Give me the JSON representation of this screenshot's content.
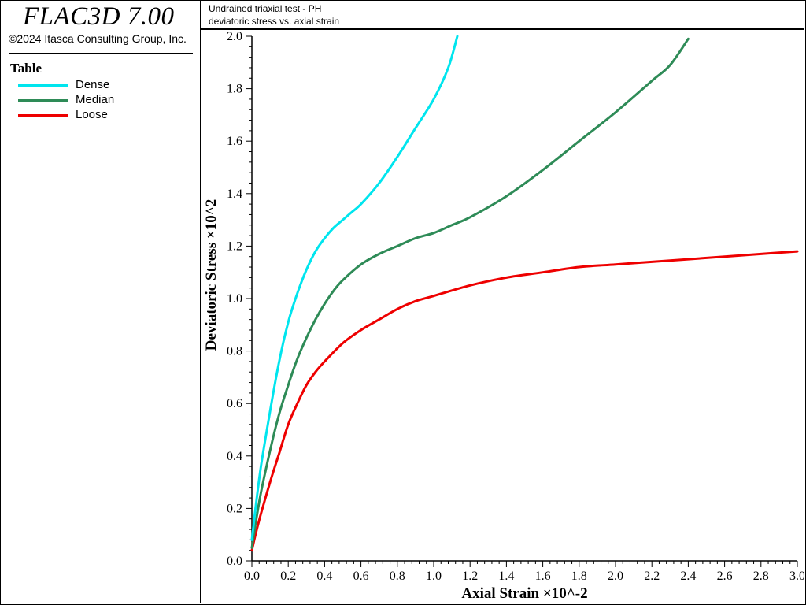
{
  "app": {
    "name": "FLAC3D 7.00",
    "copyright": "©2024 Itasca Consulting Group, Inc."
  },
  "legend": {
    "heading": "Table",
    "items": [
      {
        "label": "Dense",
        "color": "#00e5ee"
      },
      {
        "label": "Median",
        "color": "#2e8b57"
      },
      {
        "label": "Loose",
        "color": "#ee0000"
      }
    ]
  },
  "plot_title": {
    "line1": "Undrained triaxial test - PH",
    "line2": "deviatoric stress vs. axial strain"
  },
  "chart_data": {
    "type": "line",
    "xlabel": "Axial Strain ×10^-2",
    "ylabel": "Deviatoric Stress ×10^2",
    "xlim": [
      0.0,
      3.0
    ],
    "ylim": [
      0.0,
      2.0
    ],
    "x_ticks": [
      "0.0",
      "0.2",
      "0.4",
      "0.6",
      "0.8",
      "1.0",
      "1.2",
      "1.4",
      "1.6",
      "1.8",
      "2.0",
      "2.2",
      "2.4",
      "2.6",
      "2.8",
      "3.0"
    ],
    "y_ticks": [
      "0.0",
      "0.2",
      "0.4",
      "0.6",
      "0.8",
      "1.0",
      "1.2",
      "1.4",
      "1.6",
      "1.8",
      "2.0"
    ],
    "grid": false,
    "series": [
      {
        "name": "Dense",
        "color": "#00e5ee",
        "points": [
          [
            0.0,
            0.08
          ],
          [
            0.02,
            0.2
          ],
          [
            0.05,
            0.36
          ],
          [
            0.1,
            0.57
          ],
          [
            0.15,
            0.76
          ],
          [
            0.2,
            0.91
          ],
          [
            0.25,
            1.02
          ],
          [
            0.3,
            1.11
          ],
          [
            0.35,
            1.18
          ],
          [
            0.4,
            1.23
          ],
          [
            0.45,
            1.27
          ],
          [
            0.5,
            1.3
          ],
          [
            0.55,
            1.33
          ],
          [
            0.6,
            1.36
          ],
          [
            0.7,
            1.44
          ],
          [
            0.8,
            1.54
          ],
          [
            0.9,
            1.65
          ],
          [
            1.0,
            1.76
          ],
          [
            1.08,
            1.88
          ],
          [
            1.13,
            2.0
          ]
        ]
      },
      {
        "name": "Median",
        "color": "#2e8b57",
        "points": [
          [
            0.0,
            0.05
          ],
          [
            0.02,
            0.14
          ],
          [
            0.05,
            0.26
          ],
          [
            0.1,
            0.42
          ],
          [
            0.15,
            0.56
          ],
          [
            0.2,
            0.67
          ],
          [
            0.25,
            0.77
          ],
          [
            0.3,
            0.85
          ],
          [
            0.35,
            0.92
          ],
          [
            0.4,
            0.98
          ],
          [
            0.45,
            1.03
          ],
          [
            0.5,
            1.07
          ],
          [
            0.6,
            1.13
          ],
          [
            0.7,
            1.17
          ],
          [
            0.8,
            1.2
          ],
          [
            0.9,
            1.23
          ],
          [
            1.0,
            1.25
          ],
          [
            1.1,
            1.28
          ],
          [
            1.2,
            1.31
          ],
          [
            1.4,
            1.39
          ],
          [
            1.6,
            1.49
          ],
          [
            1.8,
            1.6
          ],
          [
            2.0,
            1.71
          ],
          [
            2.2,
            1.83
          ],
          [
            2.3,
            1.89
          ],
          [
            2.4,
            1.99
          ]
        ]
      },
      {
        "name": "Loose",
        "color": "#ee0000",
        "points": [
          [
            0.0,
            0.04
          ],
          [
            0.02,
            0.1
          ],
          [
            0.05,
            0.18
          ],
          [
            0.1,
            0.3
          ],
          [
            0.15,
            0.41
          ],
          [
            0.2,
            0.52
          ],
          [
            0.25,
            0.6
          ],
          [
            0.3,
            0.67
          ],
          [
            0.35,
            0.72
          ],
          [
            0.4,
            0.76
          ],
          [
            0.5,
            0.83
          ],
          [
            0.6,
            0.88
          ],
          [
            0.7,
            0.92
          ],
          [
            0.8,
            0.96
          ],
          [
            0.9,
            0.99
          ],
          [
            1.0,
            1.01
          ],
          [
            1.2,
            1.05
          ],
          [
            1.4,
            1.08
          ],
          [
            1.6,
            1.1
          ],
          [
            1.8,
            1.12
          ],
          [
            2.0,
            1.13
          ],
          [
            2.2,
            1.14
          ],
          [
            2.4,
            1.15
          ],
          [
            2.6,
            1.16
          ],
          [
            2.8,
            1.17
          ],
          [
            3.0,
            1.18
          ]
        ]
      }
    ]
  }
}
